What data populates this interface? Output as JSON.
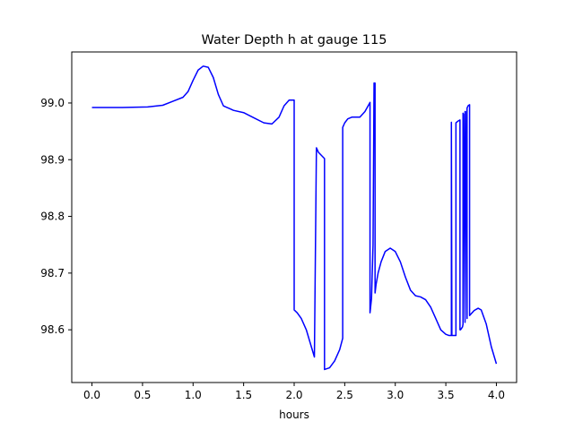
{
  "chart_data": {
    "type": "line",
    "title": "Water Depth h at gauge 115",
    "xlabel": "hours",
    "ylabel": "",
    "xlim": [
      -0.2,
      4.2
    ],
    "ylim": [
      98.507,
      99.09
    ],
    "xticks": [
      0.0,
      0.5,
      1.0,
      1.5,
      2.0,
      2.5,
      3.0,
      3.5,
      4.0
    ],
    "xtick_labels": [
      "0.0",
      "0.5",
      "1.0",
      "1.5",
      "2.0",
      "2.5",
      "3.0",
      "3.5",
      "4.0"
    ],
    "yticks": [
      98.6,
      98.7,
      98.8,
      98.9,
      99.0
    ],
    "ytick_labels": [
      "98.6",
      "98.7",
      "98.8",
      "98.9",
      "99.0"
    ],
    "grid": false,
    "legend": "none",
    "series": [
      {
        "color": "#0000ff",
        "x": [
          0.0,
          0.3,
          0.55,
          0.7,
          0.8,
          0.9,
          0.95,
          1.0,
          1.05,
          1.1,
          1.15,
          1.2,
          1.25,
          1.3,
          1.4,
          1.5,
          1.6,
          1.7,
          1.78,
          1.85,
          1.9,
          1.95,
          2.0,
          2.0,
          2.03,
          2.07,
          2.12,
          2.17,
          2.2,
          2.22,
          2.24,
          2.3,
          2.3,
          2.35,
          2.4,
          2.45,
          2.48,
          2.48,
          2.5,
          2.53,
          2.57,
          2.6,
          2.65,
          2.7,
          2.75,
          2.75,
          2.765,
          2.78,
          2.79,
          2.8,
          2.8,
          2.81,
          2.83,
          2.86,
          2.9,
          2.95,
          3.0,
          3.05,
          3.1,
          3.15,
          3.2,
          3.25,
          3.3,
          3.35,
          3.4,
          3.45,
          3.5,
          3.53,
          3.555,
          3.555,
          3.56,
          3.575,
          3.6,
          3.6,
          3.62,
          3.64,
          3.64,
          3.645,
          3.665,
          3.67,
          3.67,
          3.675,
          3.69,
          3.69,
          3.695,
          3.71,
          3.71,
          3.72,
          3.735,
          3.735,
          3.75,
          3.78,
          3.82,
          3.85,
          3.9,
          3.95,
          4.0
        ],
        "y": [
          98.992,
          98.992,
          98.993,
          98.996,
          99.003,
          99.01,
          99.02,
          99.04,
          99.058,
          99.065,
          99.063,
          99.045,
          99.015,
          98.995,
          98.987,
          98.983,
          98.974,
          98.965,
          98.963,
          98.975,
          98.995,
          99.005,
          99.005,
          98.635,
          98.63,
          98.62,
          98.6,
          98.57,
          98.552,
          98.921,
          98.913,
          98.902,
          98.53,
          98.533,
          98.545,
          98.565,
          98.585,
          98.957,
          98.965,
          98.972,
          98.975,
          98.975,
          98.975,
          98.985,
          99.001,
          98.63,
          98.655,
          98.75,
          99.035,
          99.035,
          98.665,
          98.68,
          98.7,
          98.72,
          98.738,
          98.744,
          98.738,
          98.72,
          98.693,
          98.67,
          98.66,
          98.658,
          98.653,
          98.64,
          98.62,
          98.6,
          98.592,
          98.59,
          98.59,
          98.966,
          98.59,
          98.59,
          98.59,
          98.965,
          98.968,
          98.97,
          98.6,
          98.6,
          98.605,
          98.61,
          98.982,
          98.98,
          98.613,
          98.985,
          98.985,
          98.62,
          98.991,
          98.995,
          98.997,
          98.625,
          98.628,
          98.634,
          98.638,
          98.635,
          98.61,
          98.57,
          98.54
        ]
      }
    ]
  }
}
